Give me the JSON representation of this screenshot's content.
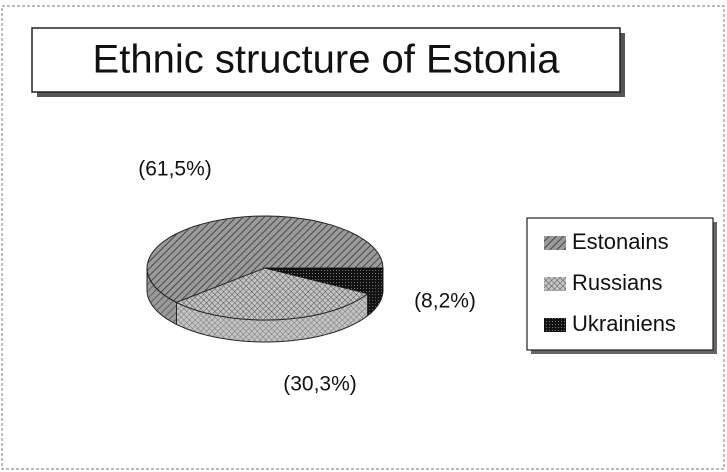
{
  "chart_data": {
    "type": "pie",
    "title": "Ethnic structure of Estonia",
    "categories": [
      "Estonains",
      "Russians",
      "Ukrainiens"
    ],
    "values": [
      61.5,
      30.3,
      8.2
    ],
    "value_labels": [
      "(61,5%)",
      "(30,3%)",
      "(8,2%)"
    ],
    "colors": [
      "#9a9a9a",
      "#c4c4c4",
      "#1e1e1e"
    ],
    "legend": "right"
  }
}
